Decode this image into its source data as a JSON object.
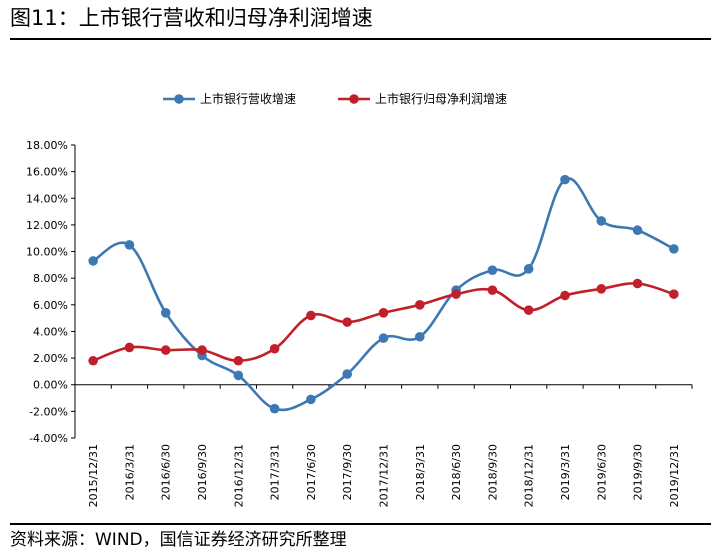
{
  "figure": {
    "title": "图11：上市银行营收和归母净利润增速",
    "source": "资料来源：WIND，国信证券经济研究所整理"
  },
  "chart_data": {
    "type": "line",
    "title": "",
    "xlabel": "",
    "ylabel": "",
    "categories": [
      "2015/12/31",
      "2016/3/31",
      "2016/6/30",
      "2016/9/30",
      "2016/12/31",
      "2017/3/31",
      "2017/6/30",
      "2017/9/30",
      "2017/12/31",
      "2018/3/31",
      "2018/6/30",
      "2018/9/30",
      "2018/12/31",
      "2019/3/31",
      "2019/6/30",
      "2019/9/30",
      "2019/12/31"
    ],
    "y_ticks": [
      "18.00%",
      "16.00%",
      "14.00%",
      "12.00%",
      "10.00%",
      "8.00%",
      "6.00%",
      "4.00%",
      "2.00%",
      "0.00%",
      "-2.00%",
      "-4.00%"
    ],
    "ylim": [
      -4,
      18
    ],
    "y_step": 2,
    "grid": false,
    "legend_position": "top",
    "series": [
      {
        "name": "上市银行营收增速",
        "color": "#3c78b4",
        "values": [
          9.3,
          10.5,
          5.4,
          2.2,
          0.7,
          -1.8,
          -1.1,
          0.8,
          3.5,
          3.6,
          7.1,
          8.6,
          8.7,
          15.4,
          12.3,
          11.6,
          10.2
        ]
      },
      {
        "name": "上市银行归母净利润增速",
        "color": "#c0202a",
        "values": [
          1.8,
          2.8,
          2.6,
          2.6,
          1.8,
          2.7,
          5.2,
          4.7,
          5.4,
          6.0,
          6.8,
          7.1,
          5.6,
          6.7,
          7.2,
          7.6,
          6.8
        ]
      }
    ]
  }
}
